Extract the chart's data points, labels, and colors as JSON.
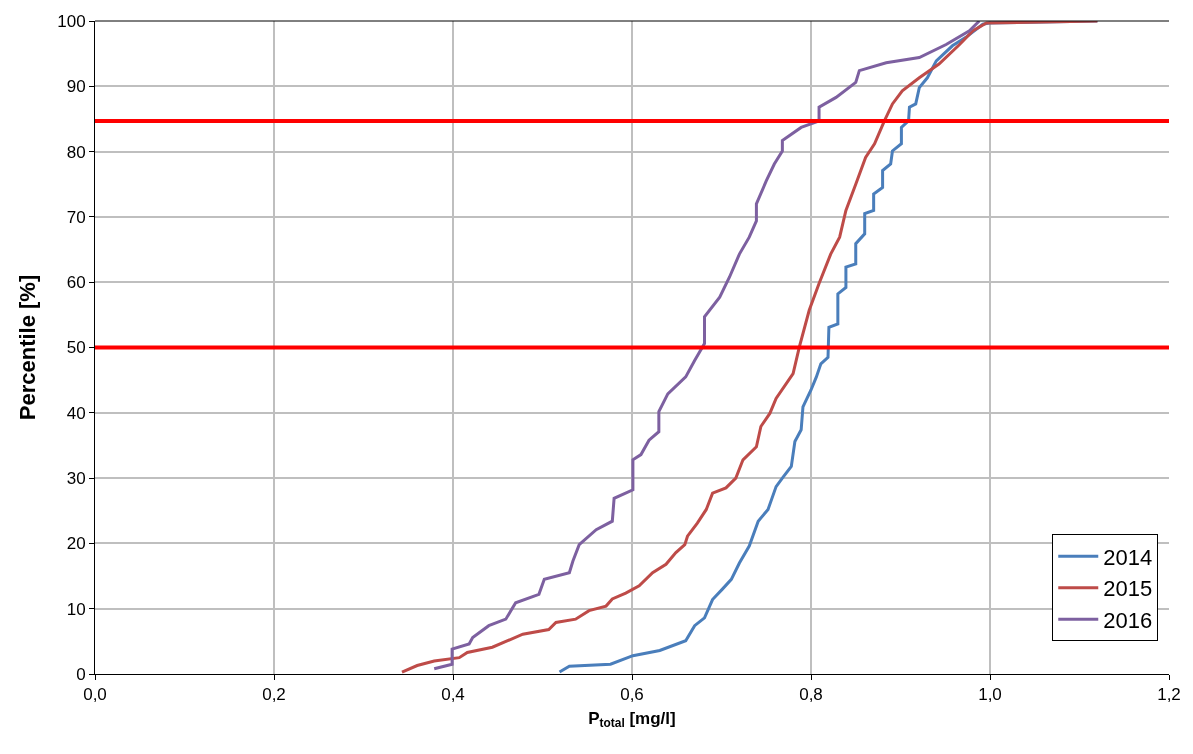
{
  "chart_data": {
    "type": "line",
    "xlabel": "P$_{total}$ [mg/l]",
    "ylabel": "Percentile [%]",
    "xlim": [
      0,
      1.2
    ],
    "ylim": [
      0,
      100
    ],
    "xticks": [
      {
        "value": 0,
        "label": "0,0"
      },
      {
        "value": 0.2,
        "label": "0,2"
      },
      {
        "value": 0.4,
        "label": "0,4"
      },
      {
        "value": 0.6,
        "label": "0,6"
      },
      {
        "value": 0.8,
        "label": "0,8"
      },
      {
        "value": 1.0,
        "label": "1,0"
      },
      {
        "value": 1.2,
        "label": "1,2"
      }
    ],
    "yticks": [
      0,
      10,
      20,
      30,
      40,
      50,
      60,
      70,
      80,
      90,
      100
    ],
    "grid": true,
    "legend": "bottom right",
    "marker": "none",
    "line_style": "solid",
    "series": [
      {
        "name": "2014",
        "color": "#4a7ebb",
        "x": [
          0.519,
          0.53,
          0.576,
          0.601,
          0.631,
          0.66,
          0.67,
          0.681,
          0.69,
          0.701,
          0.711,
          0.72,
          0.731,
          0.741,
          0.752,
          0.761,
          0.769,
          0.778,
          0.782,
          0.789,
          0.791,
          0.8,
          0.806,
          0.811,
          0.819,
          0.82,
          0.83,
          0.83,
          0.839,
          0.839,
          0.85,
          0.85,
          0.86,
          0.86,
          0.87,
          0.87,
          0.88,
          0.88,
          0.889,
          0.891,
          0.901,
          0.901,
          0.909,
          0.91,
          0.917,
          0.921,
          0.93,
          0.94,
          0.958,
          0.973,
          0.992,
          0.999,
          1.12
        ],
        "values": [
          0.3,
          1.2,
          1.5,
          2.8,
          3.6,
          5.1,
          7.4,
          8.6,
          11.4,
          13,
          14.5,
          17,
          19.6,
          23.4,
          25.2,
          28.7,
          30.2,
          31.8,
          35.6,
          37.4,
          40.9,
          43.5,
          45.5,
          47.5,
          48.5,
          53.1,
          53.6,
          58.2,
          59.2,
          62.3,
          62.8,
          65.9,
          67.4,
          70.5,
          71,
          73.5,
          74.5,
          77.1,
          78.1,
          80.1,
          81.2,
          83.7,
          84.7,
          86.8,
          87.3,
          89.8,
          91.3,
          93.9,
          96.2,
          97.5,
          99.5,
          99.7,
          100
        ]
      },
      {
        "name": "2015",
        "color": "#be4b48",
        "x": [
          0.343,
          0.36,
          0.379,
          0.407,
          0.416,
          0.444,
          0.478,
          0.507,
          0.515,
          0.537,
          0.552,
          0.571,
          0.578,
          0.593,
          0.608,
          0.623,
          0.638,
          0.649,
          0.659,
          0.662,
          0.673,
          0.683,
          0.69,
          0.705,
          0.716,
          0.724,
          0.739,
          0.744,
          0.754,
          0.761,
          0.78,
          0.787,
          0.798,
          0.809,
          0.822,
          0.832,
          0.839,
          0.85,
          0.861,
          0.871,
          0.882,
          0.891,
          0.902,
          0.921,
          0.943,
          0.966,
          0.981,
          0.996,
          1.12
        ],
        "values": [
          0.3,
          1.3,
          2,
          2.5,
          3.3,
          4.1,
          6.1,
          6.8,
          7.9,
          8.4,
          9.7,
          10.4,
          11.5,
          12.4,
          13.5,
          15.5,
          16.8,
          18.6,
          19.8,
          21.1,
          23.1,
          25.2,
          27.7,
          28.5,
          30,
          32.8,
          34.8,
          37.9,
          39.9,
          42.2,
          46,
          50.1,
          55.7,
          59.8,
          64.3,
          66.9,
          71,
          75,
          79.1,
          81.2,
          84.7,
          87.3,
          89.3,
          91.3,
          93.4,
          96.4,
          98.5,
          99.7,
          100
        ]
      },
      {
        "name": "2016",
        "color": "#7d60a0",
        "x": [
          0.379,
          0.399,
          0.399,
          0.418,
          0.422,
          0.44,
          0.459,
          0.47,
          0.496,
          0.502,
          0.53,
          0.534,
          0.541,
          0.56,
          0.578,
          0.58,
          0.601,
          0.601,
          0.61,
          0.619,
          0.63,
          0.63,
          0.64,
          0.66,
          0.67,
          0.681,
          0.681,
          0.698,
          0.709,
          0.72,
          0.731,
          0.739,
          0.739,
          0.75,
          0.759,
          0.768,
          0.768,
          0.789,
          0.809,
          0.809,
          0.828,
          0.85,
          0.854,
          0.884,
          0.921,
          0.951,
          0.977,
          0.988
        ],
        "values": [
          0.8,
          1.5,
          3.8,
          4.6,
          5.6,
          7.4,
          8.4,
          10.9,
          12.2,
          14.5,
          15.5,
          17.3,
          19.8,
          22.1,
          23.4,
          26.9,
          28.2,
          32.8,
          33.6,
          35.8,
          37.1,
          40.2,
          42.9,
          45.5,
          48,
          50.6,
          54.7,
          57.7,
          60.8,
          64.3,
          66.9,
          69.4,
          72,
          75.5,
          78.1,
          80.1,
          81.7,
          83.7,
          84.7,
          86.8,
          88.3,
          90.6,
          92.4,
          93.6,
          94.4,
          96.4,
          98.5,
          100
        ]
      }
    ],
    "ref_lines": [
      {
        "axis": "y",
        "value": 50,
        "color": "#ff0000"
      },
      {
        "axis": "y",
        "value": 84.7,
        "color": "#ff0000"
      }
    ]
  }
}
